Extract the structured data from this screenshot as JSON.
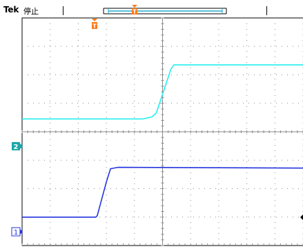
{
  "header": {
    "brand": "Tek",
    "status": "停止"
  },
  "markers": {
    "trigger_label": "T",
    "ch1_label": "1",
    "ch2_label": "2"
  },
  "colors": {
    "ch1": "#2233dd",
    "ch2": "#22eeee",
    "trigger": "#ff7a1a",
    "grid": "#888888",
    "border": "#000000"
  },
  "chart_data": {
    "type": "line",
    "title": "",
    "xlabel": "",
    "ylabel": "",
    "grid": true,
    "x_divisions": 10,
    "y_divisions": 8,
    "series": [
      {
        "name": "",
        "channel": 2,
        "color": "#22eeee",
        "x": [
          0,
          4.1,
          4.4,
          4.55,
          5.05,
          5.15,
          5.5,
          10
        ],
        "y": [
          0.45,
          0.45,
          0.52,
          0.65,
          2.2,
          2.35,
          2.35,
          2.35
        ]
      },
      {
        "name": "",
        "channel": 1,
        "color": "#2233dd",
        "x": [
          0,
          2.5,
          2.55,
          2.85,
          3.0,
          3.25,
          10
        ],
        "y": [
          -3.0,
          -3.0,
          -2.95,
          -1.8,
          -1.3,
          -1.25,
          -1.28
        ]
      }
    ],
    "xlim": [
      0,
      10
    ],
    "ylim": [
      -4,
      4
    ]
  }
}
